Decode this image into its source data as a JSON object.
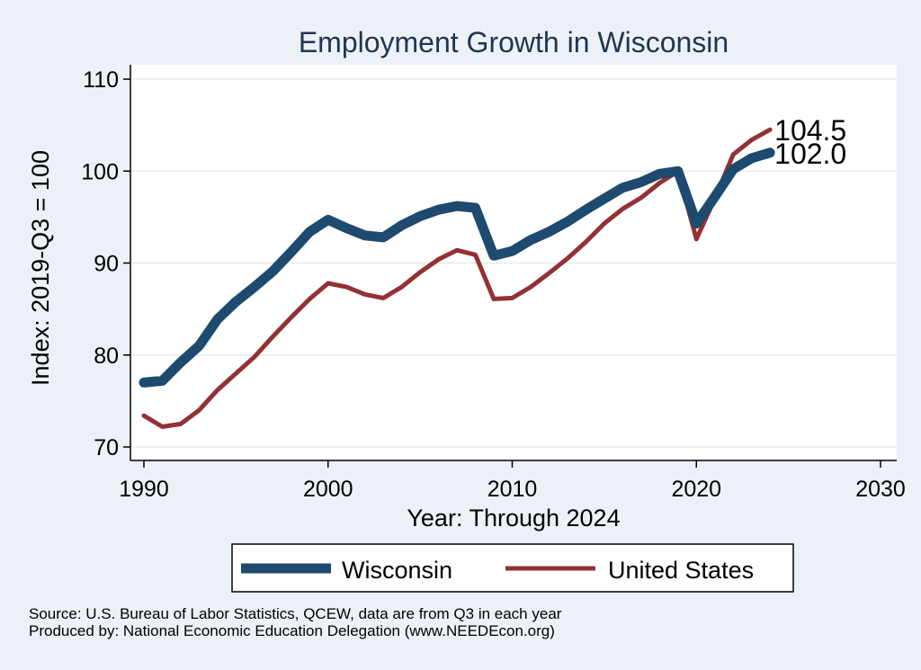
{
  "colors": {
    "wisconsin": "#1d4a6e",
    "united_states": "#923134",
    "plot_background": "#ffffff",
    "page_background": "#ecf1f7",
    "gridline": "#e6ebf0",
    "title": "#1f3552"
  },
  "chart_data": {
    "type": "line",
    "title": "Employment Growth in Wisconsin",
    "xlabel": "Year: Through 2024",
    "ylabel": "Index: 2019-Q3 = 100",
    "xlim": [
      1990,
      2030
    ],
    "ylim": [
      70,
      110
    ],
    "xticks": [
      1990,
      2000,
      2010,
      2020,
      2030
    ],
    "yticks": [
      70,
      80,
      90,
      100,
      110
    ],
    "x": [
      1990,
      1991,
      1992,
      1993,
      1994,
      1995,
      1996,
      1997,
      1998,
      1999,
      2000,
      2001,
      2002,
      2003,
      2004,
      2005,
      2006,
      2007,
      2008,
      2009,
      2010,
      2011,
      2012,
      2013,
      2014,
      2015,
      2016,
      2017,
      2018,
      2019,
      2020,
      2021,
      2022,
      2023,
      2024
    ],
    "series": [
      {
        "name": "Wisconsin",
        "color": "#1d4a6e",
        "end_label": "102.0",
        "values": [
          77.0,
          77.2,
          79.2,
          81.0,
          83.9,
          85.8,
          87.4,
          89.1,
          91.2,
          93.4,
          94.7,
          93.8,
          93.0,
          92.8,
          94.1,
          95.1,
          95.8,
          96.2,
          96.0,
          90.8,
          91.3,
          92.5,
          93.4,
          94.5,
          95.8,
          97.0,
          98.2,
          98.8,
          99.7,
          100.0,
          94.3,
          97.2,
          100.2,
          101.4,
          102.0
        ]
      },
      {
        "name": "United States",
        "color": "#923134",
        "end_label": "104.5",
        "values": [
          73.4,
          72.2,
          72.5,
          74.0,
          76.2,
          78.0,
          79.8,
          82.0,
          84.1,
          86.1,
          87.8,
          87.4,
          86.6,
          86.2,
          87.4,
          89.0,
          90.4,
          91.4,
          90.9,
          86.1,
          86.2,
          87.4,
          88.9,
          90.5,
          92.3,
          94.3,
          95.9,
          97.1,
          98.7,
          100.0,
          92.6,
          97.0,
          101.8,
          103.4,
          104.5
        ]
      }
    ],
    "legend": [
      "Wisconsin",
      "United States"
    ],
    "legend_position": "bottom",
    "grid": true
  },
  "source_line_1": "Source: U.S. Bureau of Labor Statistics, QCEW, data are from Q3 in each year",
  "source_line_2": "Produced by: National Economic Education Delegation (www.NEEDEcon.org)"
}
